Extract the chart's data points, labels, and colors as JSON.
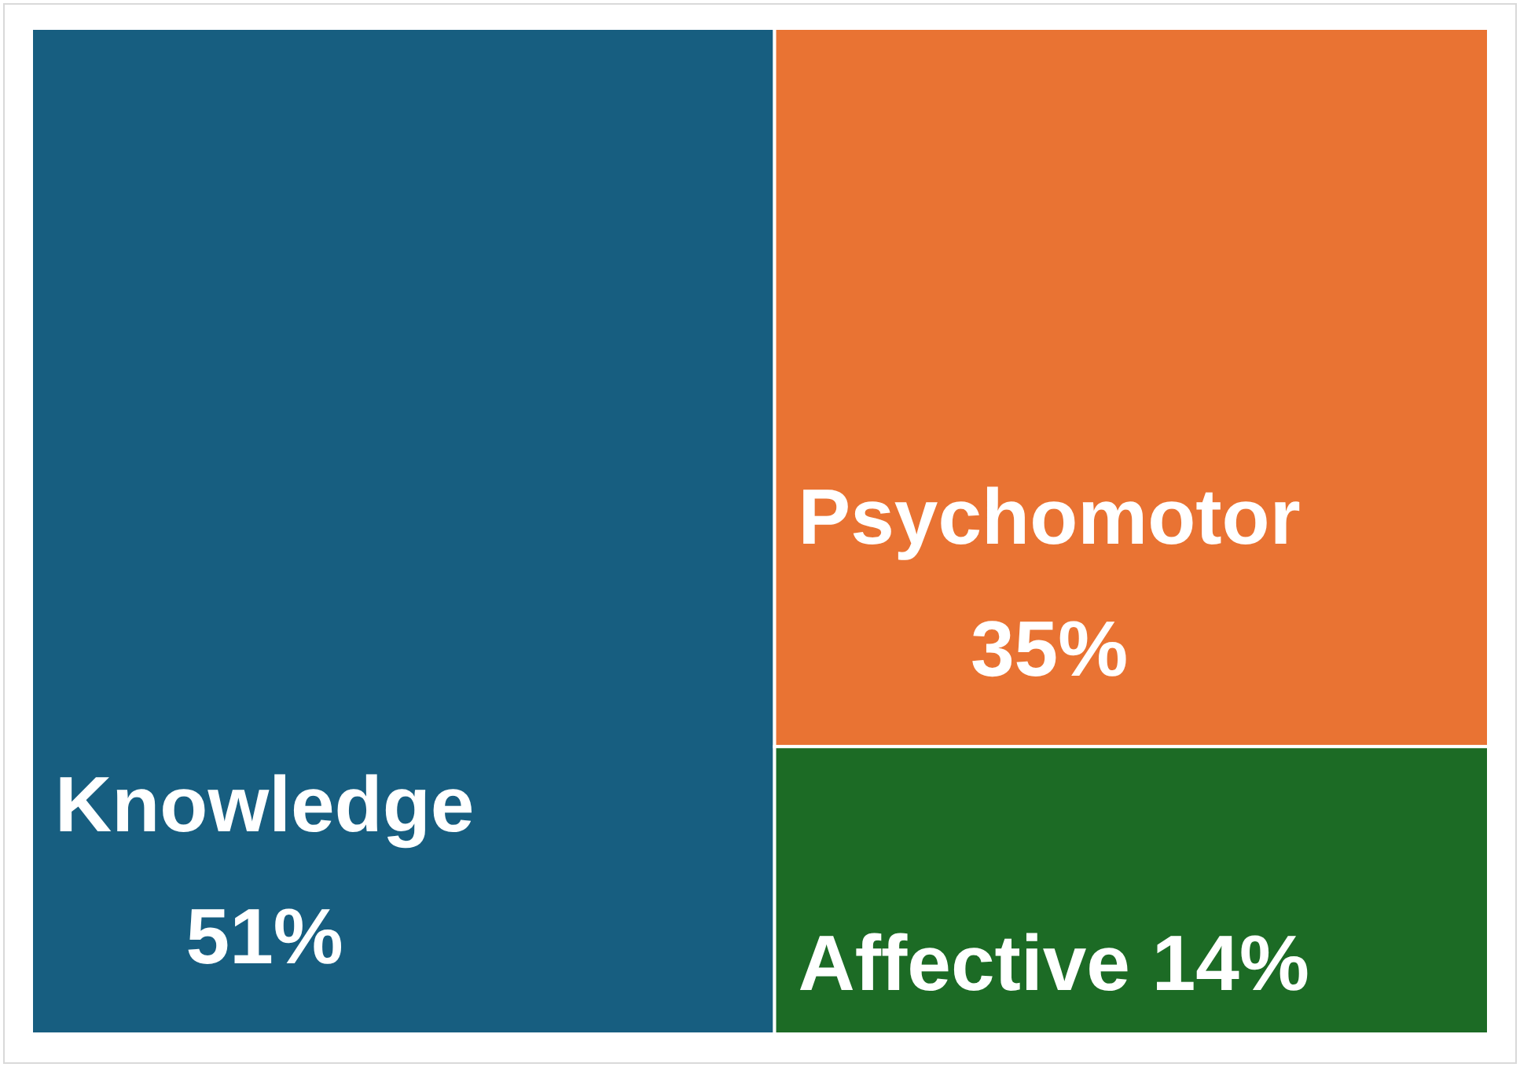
{
  "chart_data": {
    "type": "other",
    "categories": [
      "Knowledge",
      "Psychomotor",
      "Affective"
    ],
    "values": [
      51,
      35,
      14
    ],
    "value_labels": [
      "51%",
      "35%",
      "14%"
    ],
    "colors": [
      "#175e80",
      "#e97333",
      "#1c6b25"
    ]
  }
}
